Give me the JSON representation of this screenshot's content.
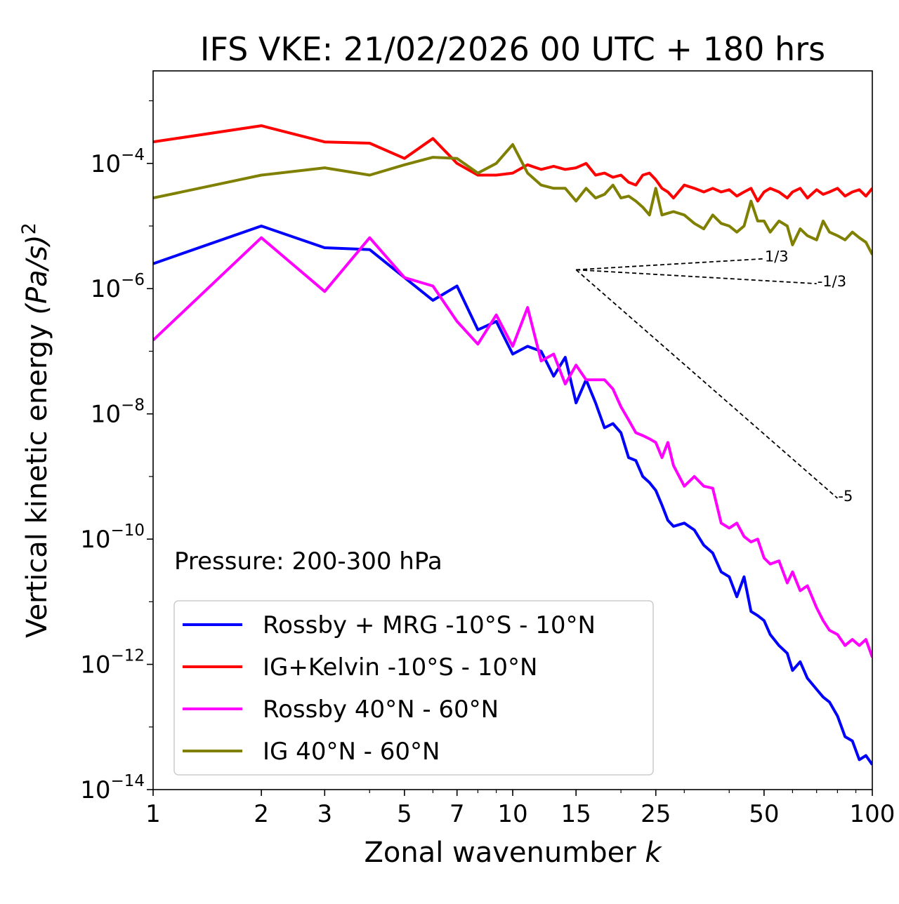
{
  "chart_data": {
    "type": "line",
    "title": "IFS VKE: 21/02/2026 00 UTC + 180 hrs",
    "xlabel": "Zonal wavenumber",
    "xlabel_var": "k",
    "ylabel": "Vertical kinetic energy",
    "ylabel_var": "(Pa/s)",
    "ylabel_exp": "2",
    "xscale": "log",
    "yscale": "log",
    "xlim": [
      1,
      100
    ],
    "ylim": [
      1e-14,
      0.003
    ],
    "xticks": [
      1,
      2,
      3,
      5,
      7,
      10,
      15,
      25,
      50,
      100
    ],
    "xtick_labels": [
      "1",
      "2",
      "3",
      "5",
      "7",
      "10",
      "15",
      "25",
      "50",
      "100"
    ],
    "yticks": [
      {
        "value": 1e-14,
        "base": "10",
        "exp": "−14"
      },
      {
        "value": 1e-12,
        "base": "10",
        "exp": "−12"
      },
      {
        "value": 1e-10,
        "base": "10",
        "exp": "−10"
      },
      {
        "value": 1e-08,
        "base": "10",
        "exp": "−8"
      },
      {
        "value": 1e-06,
        "base": "10",
        "exp": "−6"
      },
      {
        "value": 0.0001,
        "base": "10",
        "exp": "−4"
      }
    ],
    "annotation": "Pressure: 200-300 hPa",
    "legend_position": "lower-left",
    "slope_lines": [
      {
        "label": "1/3",
        "x0": 15,
        "y0": 2e-06,
        "x1": 50,
        "y1": 3e-06
      },
      {
        "label": "-1/3",
        "x0": 15,
        "y0": 2e-06,
        "x1": 70,
        "y1": 1.2e-06
      },
      {
        "label": "-5",
        "x0": 15,
        "y0": 2e-06,
        "x1": 80,
        "y1": 4.5e-10
      }
    ],
    "series": [
      {
        "name": "Rossby + MRG -10°S - 10°N",
        "color": "#0000ff",
        "points": [
          [
            1,
            2.5e-06
          ],
          [
            2,
            1e-05
          ],
          [
            3,
            4.5e-06
          ],
          [
            4,
            4.2e-06
          ],
          [
            5,
            1.5e-06
          ],
          [
            6,
            6.5e-07
          ],
          [
            7,
            1.1e-06
          ],
          [
            8,
            2.2e-07
          ],
          [
            9,
            3e-07
          ],
          [
            10,
            9e-08
          ],
          [
            11,
            1.2e-07
          ],
          [
            12,
            1e-07
          ],
          [
            13,
            4e-08
          ],
          [
            14,
            8e-08
          ],
          [
            15,
            1.5e-08
          ],
          [
            16,
            3.5e-08
          ],
          [
            17,
            1.5e-08
          ],
          [
            18,
            6e-09
          ],
          [
            19,
            7e-09
          ],
          [
            20,
            5e-09
          ],
          [
            21,
            2e-09
          ],
          [
            22,
            1.8e-09
          ],
          [
            23,
            1e-09
          ],
          [
            24,
            8e-10
          ],
          [
            25,
            6e-10
          ],
          [
            26,
            3.5e-10
          ],
          [
            27,
            2e-10
          ],
          [
            28,
            1.6e-10
          ],
          [
            30,
            1.8e-10
          ],
          [
            32,
            1.4e-10
          ],
          [
            34,
            8e-11
          ],
          [
            36,
            6e-11
          ],
          [
            38,
            3e-11
          ],
          [
            40,
            2.5e-11
          ],
          [
            42,
            1.2e-11
          ],
          [
            44,
            2.5e-11
          ],
          [
            46,
            7e-12
          ],
          [
            48,
            6e-12
          ],
          [
            50,
            5e-12
          ],
          [
            52,
            3e-12
          ],
          [
            55,
            2e-12
          ],
          [
            58,
            1.5e-12
          ],
          [
            60,
            8e-13
          ],
          [
            63,
            1.1e-12
          ],
          [
            66,
            6e-13
          ],
          [
            70,
            4e-13
          ],
          [
            73,
            3e-13
          ],
          [
            76,
            2.5e-13
          ],
          [
            80,
            1.5e-13
          ],
          [
            84,
            7e-14
          ],
          [
            88,
            6e-14
          ],
          [
            92,
            3e-14
          ],
          [
            96,
            3.5e-14
          ],
          [
            100,
            2.5e-14
          ]
        ]
      },
      {
        "name": "IG+Kelvin -10°S - 10°N",
        "color": "#ff0000",
        "points": [
          [
            1,
            0.00022
          ],
          [
            2,
            0.0004
          ],
          [
            3,
            0.00022
          ],
          [
            4,
            0.00021
          ],
          [
            5,
            0.00012
          ],
          [
            6,
            0.00025
          ],
          [
            7,
            0.0001
          ],
          [
            8,
            6.5e-05
          ],
          [
            9,
            6.5e-05
          ],
          [
            10,
            7e-05
          ],
          [
            11,
            9.5e-05
          ],
          [
            12,
            8e-05
          ],
          [
            13,
            9e-05
          ],
          [
            14,
            8e-05
          ],
          [
            15,
            8.5e-05
          ],
          [
            16,
            0.0001
          ],
          [
            17,
            6.5e-05
          ],
          [
            18,
            7e-05
          ],
          [
            19,
            6e-05
          ],
          [
            20,
            6.5e-05
          ],
          [
            21,
            5e-05
          ],
          [
            22,
            4.5e-05
          ],
          [
            23,
            6.5e-05
          ],
          [
            24,
            7e-05
          ],
          [
            25,
            5.5e-05
          ],
          [
            26,
            4e-05
          ],
          [
            27,
            3.5e-05
          ],
          [
            28,
            2.8e-05
          ],
          [
            30,
            4.5e-05
          ],
          [
            32,
            4e-05
          ],
          [
            34,
            3.5e-05
          ],
          [
            36,
            4e-05
          ],
          [
            38,
            3.5e-05
          ],
          [
            40,
            3.8e-05
          ],
          [
            42,
            3e-05
          ],
          [
            44,
            3.5e-05
          ],
          [
            46,
            4e-05
          ],
          [
            48,
            2.5e-05
          ],
          [
            50,
            3.5e-05
          ],
          [
            52,
            4e-05
          ],
          [
            55,
            3.5e-05
          ],
          [
            58,
            2.8e-05
          ],
          [
            60,
            3.5e-05
          ],
          [
            63,
            4e-05
          ],
          [
            66,
            2.8e-05
          ],
          [
            70,
            3.8e-05
          ],
          [
            73,
            3.2e-05
          ],
          [
            76,
            3.5e-05
          ],
          [
            80,
            4e-05
          ],
          [
            84,
            3e-05
          ],
          [
            88,
            3.5e-05
          ],
          [
            92,
            3.8e-05
          ],
          [
            96,
            3e-05
          ],
          [
            100,
            4e-05
          ]
        ]
      },
      {
        "name": "Rossby 40°N - 60°N",
        "color": "#ff00ff",
        "points": [
          [
            1,
            1.5e-07
          ],
          [
            2,
            6.5e-06
          ],
          [
            3,
            9e-07
          ],
          [
            4,
            6.5e-06
          ],
          [
            5,
            1.5e-06
          ],
          [
            6,
            1.1e-06
          ],
          [
            7,
            3e-07
          ],
          [
            8,
            1.3e-07
          ],
          [
            9,
            3.8e-07
          ],
          [
            10,
            1.2e-07
          ],
          [
            11,
            5e-07
          ],
          [
            12,
            7e-08
          ],
          [
            13,
            9e-08
          ],
          [
            14,
            3e-08
          ],
          [
            15,
            6e-08
          ],
          [
            16,
            3.5e-08
          ],
          [
            17,
            3.5e-08
          ],
          [
            18,
            3.5e-08
          ],
          [
            19,
            2.5e-08
          ],
          [
            20,
            1.3e-08
          ],
          [
            21,
            8e-09
          ],
          [
            22,
            5e-09
          ],
          [
            23,
            4.5e-09
          ],
          [
            24,
            4e-09
          ],
          [
            25,
            3.5e-09
          ],
          [
            26,
            2e-09
          ],
          [
            27,
            3.5e-09
          ],
          [
            28,
            1.5e-09
          ],
          [
            30,
            7e-10
          ],
          [
            32,
            1e-09
          ],
          [
            34,
            7e-10
          ],
          [
            36,
            6.5e-10
          ],
          [
            38,
            1.8e-10
          ],
          [
            40,
            1.5e-10
          ],
          [
            42,
            1.8e-10
          ],
          [
            44,
            1.1e-10
          ],
          [
            46,
            9e-11
          ],
          [
            48,
            1e-10
          ],
          [
            50,
            5e-11
          ],
          [
            52,
            4e-11
          ],
          [
            55,
            4.5e-11
          ],
          [
            58,
            2e-11
          ],
          [
            60,
            3e-11
          ],
          [
            63,
            1.5e-11
          ],
          [
            66,
            1.8e-11
          ],
          [
            70,
            8e-12
          ],
          [
            73,
            5e-12
          ],
          [
            76,
            3.5e-12
          ],
          [
            80,
            3e-12
          ],
          [
            84,
            2e-12
          ],
          [
            88,
            2.5e-12
          ],
          [
            92,
            2e-12
          ],
          [
            96,
            2.5e-12
          ],
          [
            100,
            1.3e-12
          ]
        ]
      },
      {
        "name": "IG 40°N - 60°N",
        "color": "#808000",
        "points": [
          [
            1,
            2.8e-05
          ],
          [
            2,
            6.5e-05
          ],
          [
            3,
            8.5e-05
          ],
          [
            4,
            6.5e-05
          ],
          [
            5,
            9.5e-05
          ],
          [
            6,
            0.000125
          ],
          [
            7,
            0.00012
          ],
          [
            8,
            7e-05
          ],
          [
            9,
            0.0001
          ],
          [
            10,
            0.0002
          ],
          [
            11,
            7e-05
          ],
          [
            12,
            4.5e-05
          ],
          [
            13,
            4e-05
          ],
          [
            14,
            4e-05
          ],
          [
            15,
            2.5e-05
          ],
          [
            16,
            4e-05
          ],
          [
            17,
            2.8e-05
          ],
          [
            18,
            3.2e-05
          ],
          [
            19,
            4.5e-05
          ],
          [
            20,
            2.8e-05
          ],
          [
            21,
            3e-05
          ],
          [
            22,
            2.5e-05
          ],
          [
            23,
            2e-05
          ],
          [
            24,
            1.5e-05
          ],
          [
            25,
            4e-05
          ],
          [
            26,
            1.5e-05
          ],
          [
            27,
            1.6e-05
          ],
          [
            28,
            1.7e-05
          ],
          [
            30,
            1.5e-05
          ],
          [
            32,
            1.1e-05
          ],
          [
            34,
            9e-06
          ],
          [
            36,
            1.5e-05
          ],
          [
            38,
            1.1e-05
          ],
          [
            40,
            1e-05
          ],
          [
            42,
            8e-06
          ],
          [
            44,
            1e-05
          ],
          [
            46,
            2.5e-05
          ],
          [
            48,
            1.2e-05
          ],
          [
            50,
            1.2e-05
          ],
          [
            52,
            8e-06
          ],
          [
            55,
            1.2e-05
          ],
          [
            58,
            1e-05
          ],
          [
            60,
            5e-06
          ],
          [
            63,
            9e-06
          ],
          [
            66,
            7e-06
          ],
          [
            70,
            6e-06
          ],
          [
            73,
            1.2e-05
          ],
          [
            76,
            8e-06
          ],
          [
            80,
            7e-06
          ],
          [
            84,
            6e-06
          ],
          [
            88,
            8e-06
          ],
          [
            92,
            6.5e-06
          ],
          [
            96,
            5.5e-06
          ],
          [
            100,
            3.5e-06
          ]
        ]
      }
    ]
  }
}
